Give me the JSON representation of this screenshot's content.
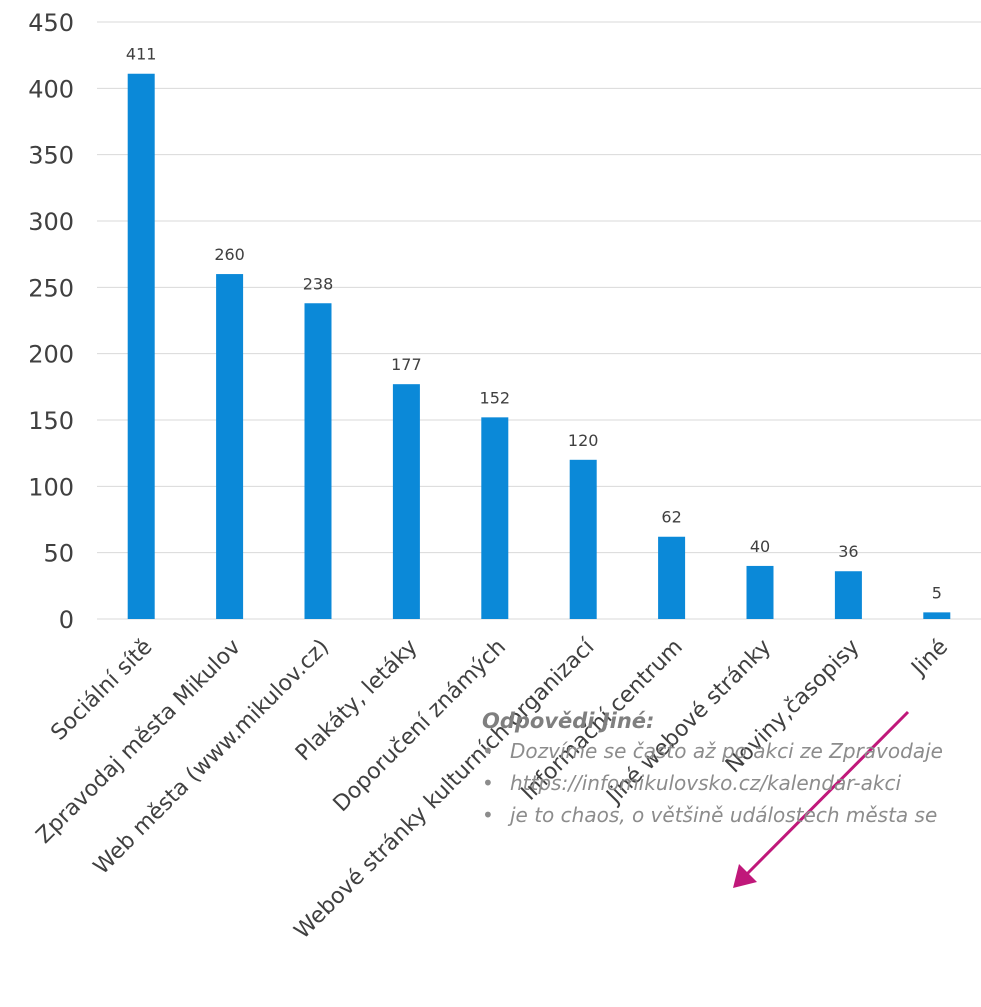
{
  "chart_data": {
    "type": "bar",
    "categories": [
      "Sociální sítě",
      "Zpravodaj města Mikulov",
      "Web města (www.mikulov.cz)",
      "Plakáty, letáky",
      "Doporučení známých",
      "Webové stránky kulturních organizací",
      "Informační centrum",
      "Jiné webové stránky",
      "Noviny,časopisy",
      "Jiné"
    ],
    "values": [
      411,
      260,
      238,
      177,
      152,
      120,
      62,
      40,
      36,
      5
    ],
    "ylim": [
      0,
      450
    ],
    "yticks": [
      0,
      50,
      100,
      150,
      200,
      250,
      300,
      350,
      400,
      450
    ],
    "grid": true,
    "bar_color": "#0b89d8",
    "data_labels": true
  },
  "annotation": {
    "arrow_color": "#c0187a",
    "title": "Odpovědi Jiné:",
    "items": [
      "Dozvíme se často až po akci ze Zpravodaje",
      "https://infomikulovsko.cz/kalendar-akci",
      "je to chaos, o většině událostech města se"
    ]
  }
}
